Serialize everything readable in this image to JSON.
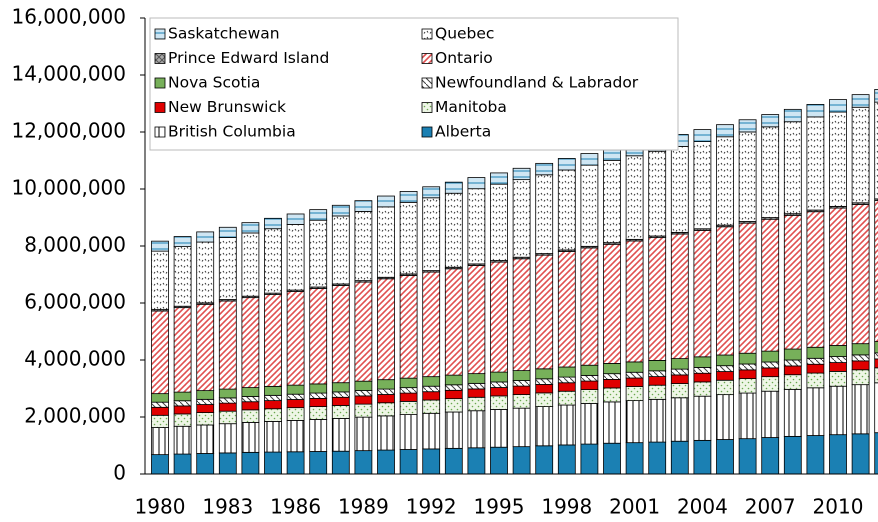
{
  "chart_data": {
    "type": "stacked_bar",
    "categories": [
      "1980",
      null,
      null,
      "1983",
      null,
      null,
      "1986",
      null,
      null,
      "1989",
      null,
      null,
      "1992",
      null,
      null,
      "1995",
      null,
      null,
      "1998",
      null,
      null,
      "2001",
      null,
      null,
      "2004",
      null,
      null,
      "2007",
      null,
      null,
      "2010",
      null,
      null
    ],
    "ylim": [
      0,
      16000000
    ],
    "yticks": [
      0,
      {
        "value": 2000000,
        "label": "2,000,000"
      },
      {
        "value": 4000000,
        "label": "4,000,000"
      },
      {
        "value": 6000000,
        "label": "6,000,000"
      },
      {
        "value": 8000000,
        "label": "8,000,000"
      },
      {
        "value": 10000000,
        "label": "10,000,000"
      },
      {
        "value": 12000000,
        "label": "12,000,000"
      },
      {
        "value": 14000000,
        "label": "14,000,000"
      },
      {
        "value": 16000000,
        "label": "16,000,000"
      }
    ],
    "grid": false,
    "legend": "top-left",
    "series": [
      {
        "name": "Alberta",
        "color": "#1b80b3",
        "values": [
          680000,
          700000,
          720000,
          740000,
          760000,
          770000,
          780000,
          790000,
          800000,
          820000,
          840000,
          860000,
          880000,
          900000,
          920000,
          940000,
          960000,
          990000,
          1020000,
          1050000,
          1080000,
          1100000,
          1120000,
          1150000,
          1180000,
          1210000,
          1240000,
          1280000,
          1320000,
          1350000,
          1380000,
          1410000,
          1450000
        ]
      },
      {
        "name": "British Columbia",
        "color": "#000000",
        "values": [
          950000,
          975000,
          1000000,
          1025000,
          1050000,
          1075000,
          1100000,
          1125000,
          1150000,
          1175000,
          1200000,
          1225000,
          1250000,
          1275000,
          1300000,
          1325000,
          1350000,
          1375000,
          1400000,
          1425000,
          1450000,
          1475000,
          1500000,
          1525000,
          1550000,
          1575000,
          1600000,
          1625000,
          1650000,
          1675000,
          1700000,
          1725000,
          1750000
        ]
      },
      {
        "name": "Manitoba",
        "color": "#6aa84f",
        "values": [
          430000,
          433000,
          436000,
          439000,
          442000,
          445000,
          448000,
          451000,
          454000,
          457000,
          460000,
          463000,
          466000,
          469000,
          472000,
          475000,
          478000,
          481000,
          484000,
          487000,
          490000,
          493000,
          496000,
          499000,
          502000,
          505000,
          508000,
          511000,
          514000,
          517000,
          520000,
          523000,
          526000
        ]
      },
      {
        "name": "New Brunswick",
        "color": "#e00000",
        "values": [
          280000,
          281000,
          282000,
          283000,
          284000,
          285000,
          286000,
          287000,
          288000,
          289000,
          290000,
          291000,
          292000,
          293000,
          294000,
          295000,
          296000,
          297000,
          298000,
          299000,
          300000,
          301000,
          302000,
          303000,
          304000,
          305000,
          306000,
          307000,
          308000,
          309000,
          310000,
          311000,
          312000
        ]
      },
      {
        "name": "Newfoundland & Labrador",
        "color": "#404040",
        "values": [
          180000,
          181000,
          182000,
          183000,
          184000,
          185000,
          186000,
          187000,
          188000,
          189000,
          190000,
          191000,
          192000,
          193000,
          194000,
          195000,
          196000,
          197000,
          198000,
          199000,
          200000,
          201000,
          202000,
          203000,
          204000,
          205000,
          206000,
          207000,
          208000,
          209000,
          210000,
          211000,
          212000
        ]
      },
      {
        "name": "Nova Scotia",
        "color": "#77b05a",
        "values": [
          300000,
          303000,
          306000,
          309000,
          312000,
          315000,
          318000,
          321000,
          324000,
          327000,
          330000,
          333000,
          336000,
          339000,
          342000,
          345000,
          348000,
          351000,
          354000,
          357000,
          360000,
          363000,
          366000,
          369000,
          372000,
          375000,
          378000,
          381000,
          384000,
          387000,
          390000,
          393000,
          396000
        ]
      },
      {
        "name": "Ontario",
        "color": "#e05050",
        "values": [
          2900000,
          2964000,
          3028000,
          3092000,
          3156000,
          3220000,
          3284000,
          3348000,
          3412000,
          3476000,
          3540000,
          3604000,
          3668000,
          3732000,
          3796000,
          3860000,
          3924000,
          3988000,
          4052000,
          4116000,
          4180000,
          4244000,
          4308000,
          4372000,
          4436000,
          4500000,
          4564000,
          4628000,
          4692000,
          4756000,
          4820000,
          4884000,
          4948000
        ]
      },
      {
        "name": "Prince Edward Island",
        "color": "#555555",
        "values": [
          50000,
          50300,
          50600,
          50900,
          51200,
          51500,
          51800,
          52100,
          52400,
          52700,
          53000,
          53300,
          53600,
          53900,
          54200,
          54500,
          54800,
          55100,
          55400,
          55700,
          56000,
          56300,
          56600,
          56900,
          57200,
          57500,
          57800,
          58100,
          58400,
          58700,
          59000,
          59300,
          59600
        ]
      },
      {
        "name": "Quebec",
        "color": "#333333",
        "values": [
          2050000,
          2092000,
          2134000,
          2176000,
          2218000,
          2260000,
          2302000,
          2344000,
          2386000,
          2428000,
          2470000,
          2512000,
          2554000,
          2596000,
          2638000,
          2680000,
          2722000,
          2764000,
          2806000,
          2848000,
          2890000,
          2932000,
          2974000,
          3016000,
          3058000,
          3100000,
          3142000,
          3184000,
          3226000,
          3268000,
          3310000,
          3352000,
          3394000
        ]
      },
      {
        "name": "Saskatchewan",
        "color": "#1b80b3",
        "values": [
          350000,
          353000,
          356000,
          359000,
          362000,
          365000,
          368000,
          371000,
          374000,
          377000,
          380000,
          383000,
          386000,
          389000,
          392000,
          395000,
          398000,
          401000,
          404000,
          407000,
          410000,
          413000,
          416000,
          419000,
          422000,
          425000,
          428000,
          431000,
          434000,
          437000,
          440000,
          443000,
          446000
        ]
      }
    ]
  }
}
